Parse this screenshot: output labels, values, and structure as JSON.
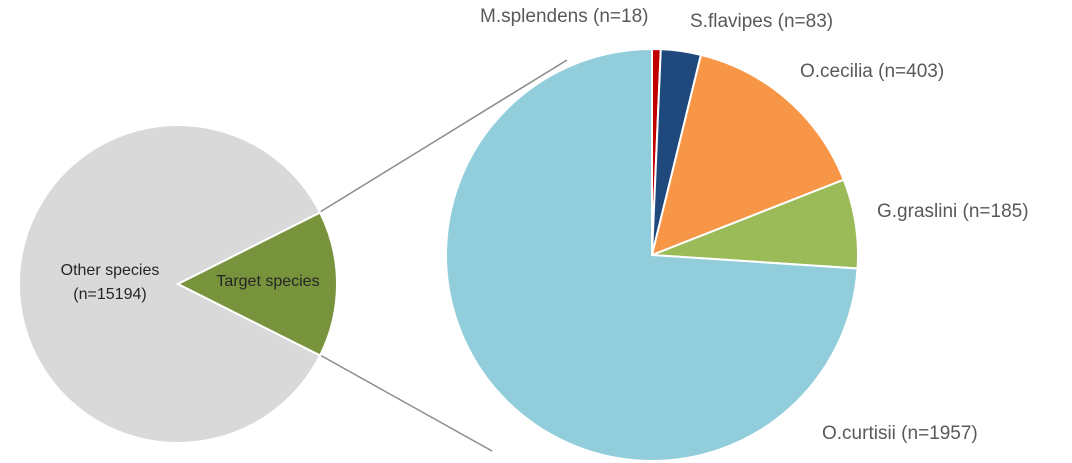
{
  "chart_data": [
    {
      "type": "pie",
      "categories": [
        "Other species (n=15194)",
        "Target species"
      ],
      "values": [
        15194,
        2646
      ],
      "colors": [
        "#d9d9d9",
        "#77933c"
      ]
    },
    {
      "type": "pie",
      "categories": [
        "M.splendens (n=18)",
        "S.flavipes (n=83)",
        "O.cecilia (n=403)",
        "G.graslini (n=185)",
        "O.curtisii (n=1957)"
      ],
      "values": [
        18,
        83,
        403,
        185,
        1957
      ],
      "colors": [
        "#c00000",
        "#1f497d",
        "#f79646",
        "#9bbb59",
        "#92cddc"
      ]
    }
  ]
}
